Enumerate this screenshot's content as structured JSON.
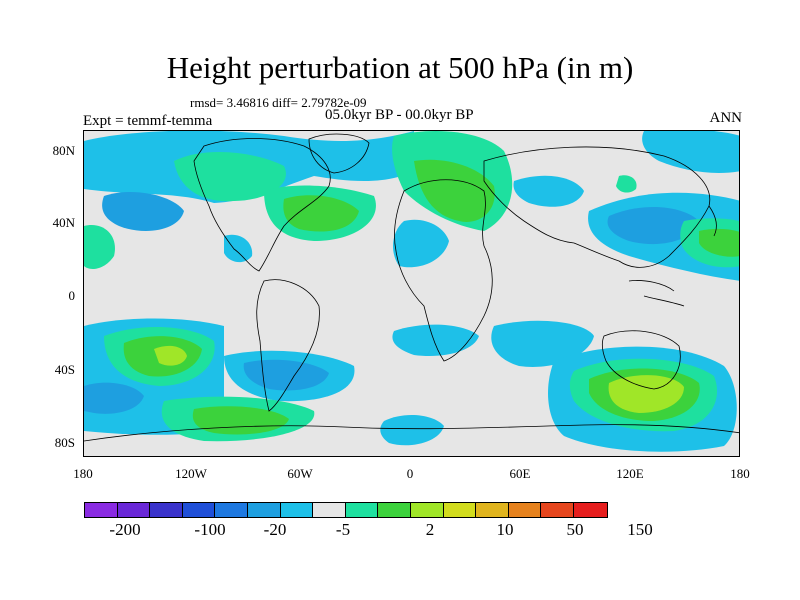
{
  "title": "Height perturbation at 500 hPa (in m)",
  "stats": "rmsd= 3.46816 diff= 2.79782e-09",
  "experiment": "Expt = temmf-temma",
  "period": "05.0kyr BP - 00.0kyr BP",
  "season": "ANN",
  "lat_labels": [
    "80N",
    "40N",
    "0",
    "40S",
    "80S"
  ],
  "lon_labels": [
    "180",
    "120W",
    "60W",
    "0",
    "60E",
    "120E",
    "180"
  ],
  "colorbar": {
    "colors": [
      "#8a2be2",
      "#6a28d8",
      "#3a33cc",
      "#1f4fd8",
      "#1e78e0",
      "#1e9fe0",
      "#1ec0e8",
      "#e6e6e6",
      "#1ee09f",
      "#3cd23c",
      "#a0e628",
      "#d2dc1e",
      "#e0b41e",
      "#e6821e",
      "#e6461e",
      "#e61e1e"
    ],
    "labels": [
      "-200",
      "-100",
      "-20",
      "-5",
      "2",
      "10",
      "50",
      "150"
    ]
  },
  "palette": {
    "light_blue": "#1ec0e8",
    "mid_blue": "#1e9fe0",
    "aqua_green": "#1ee09f",
    "green": "#3cd23c",
    "yellow_green": "#a0e628",
    "neutral": "#e6e6e6"
  }
}
